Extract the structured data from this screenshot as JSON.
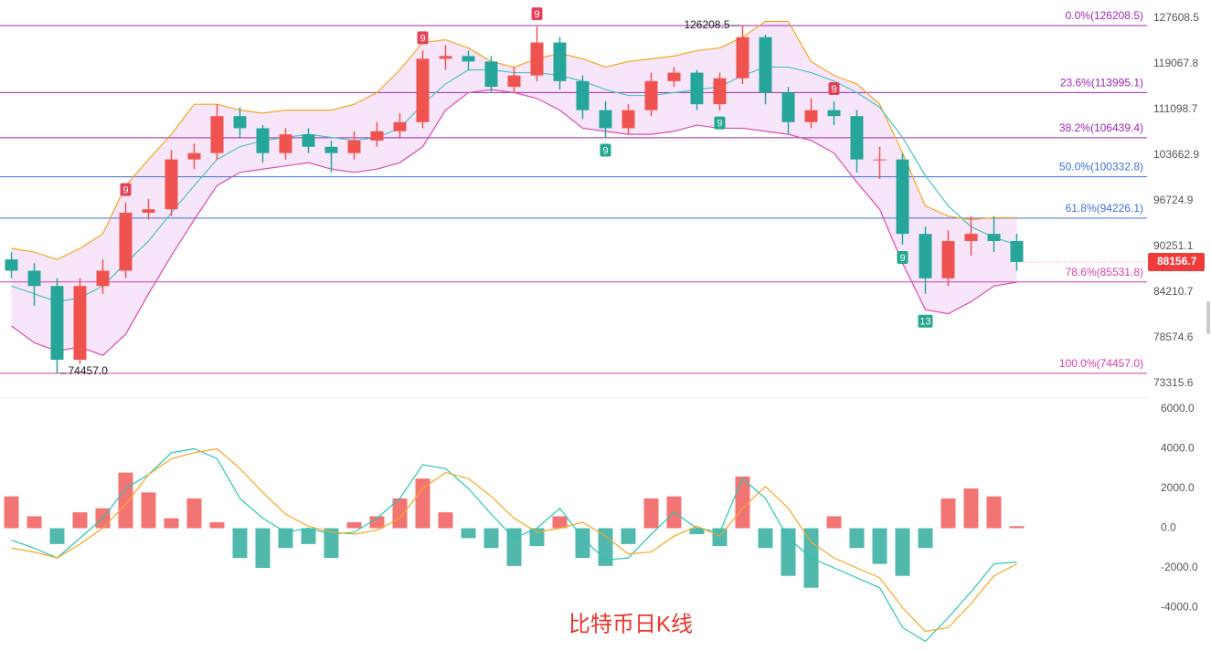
{
  "chart_data": [
    {
      "type": "candlestick",
      "ylim": [
        73315.6,
        127608.5
      ],
      "log_scale": true,
      "yticks": [
        127608.5,
        119067.8,
        111098.7,
        103662.9,
        96724.9,
        90251.1,
        84210.7,
        78574.6,
        73315.6
      ],
      "up_color": "#ef5350",
      "down_color": "#26a69a",
      "open": [
        88500,
        87000,
        85000,
        76000,
        85000,
        87000,
        95000,
        95500,
        103000,
        104000,
        110000,
        108000,
        104000,
        107000,
        105000,
        104000,
        106000,
        107500,
        109000,
        120000,
        120500,
        119500,
        115000,
        117000,
        123000,
        116000,
        111000,
        108000,
        111000,
        116000,
        117500,
        112000,
        116500,
        124000,
        114000,
        109000,
        111000,
        110000,
        103000,
        103000,
        92000,
        86000,
        91000,
        92000,
        91000
      ],
      "high": [
        89500,
        88000,
        86000,
        86000,
        88500,
        96500,
        97000,
        104500,
        105500,
        112000,
        111500,
        108500,
        108000,
        108000,
        106000,
        107500,
        109000,
        110500,
        121500,
        122500,
        121500,
        120500,
        118500,
        126000,
        124000,
        117000,
        112500,
        112000,
        117500,
        118500,
        118000,
        117500,
        126208.5,
        124500,
        115000,
        113000,
        112500,
        111000,
        105000,
        104000,
        93000,
        92500,
        94500,
        94500,
        92000
      ],
      "low": [
        86000,
        82500,
        74457,
        75500,
        84000,
        86000,
        94000,
        94500,
        101500,
        103000,
        106500,
        102500,
        103000,
        104000,
        101000,
        103000,
        105000,
        106500,
        108000,
        118000,
        118000,
        114000,
        114000,
        116000,
        114500,
        109500,
        106500,
        107000,
        110000,
        115000,
        111000,
        111000,
        115500,
        112000,
        107000,
        108000,
        108500,
        101000,
        100000,
        90500,
        84000,
        85000,
        89000,
        89500,
        87000
      ],
      "close": [
        87000,
        85000,
        76000,
        85000,
        87000,
        95000,
        95500,
        103000,
        104000,
        110000,
        108000,
        104000,
        107000,
        105000,
        104000,
        106000,
        107500,
        109000,
        120000,
        120500,
        119500,
        115000,
        117000,
        123000,
        116000,
        111000,
        108000,
        111000,
        116000,
        117500,
        112000,
        116500,
        124000,
        114000,
        109000,
        111000,
        110000,
        103000,
        103000,
        92000,
        86000,
        91000,
        92000,
        91000,
        88156.7
      ],
      "bollinger": {
        "upper_color": "#f5a623",
        "mid_color": "#4ec3c0",
        "lower_color": "#d94bb0",
        "fill": "#f3dcf7",
        "upper": [
          90000,
          89500,
          88500,
          90000,
          92000,
          99000,
          103000,
          107000,
          112000,
          112000,
          111000,
          110500,
          111000,
          111000,
          111000,
          112000,
          114000,
          118000,
          123000,
          123500,
          122000,
          119500,
          118500,
          120000,
          121000,
          120000,
          118500,
          119500,
          120000,
          120500,
          121500,
          122000,
          124000,
          127000,
          127000,
          119500,
          117000,
          115500,
          112000,
          104000,
          96000,
          94500,
          94000,
          94300,
          94300
        ],
        "mid": [
          85000,
          84000,
          83000,
          83500,
          85000,
          88000,
          91000,
          95000,
          99000,
          103000,
          105000,
          106000,
          106500,
          107000,
          106500,
          106000,
          106500,
          108000,
          112000,
          115500,
          118000,
          118000,
          117500,
          117500,
          117000,
          116000,
          114500,
          113500,
          113500,
          114000,
          114500,
          115000,
          117000,
          118500,
          118500,
          117500,
          116000,
          114000,
          111500,
          106500,
          100500,
          96000,
          93000,
          91500,
          90500
        ],
        "lower": [
          80000,
          78000,
          77000,
          77500,
          76500,
          79000,
          84000,
          89000,
          94000,
          99000,
          101000,
          101500,
          102000,
          102500,
          101500,
          101000,
          101500,
          102500,
          105000,
          111000,
          114000,
          114500,
          114000,
          113000,
          111000,
          108000,
          107500,
          107000,
          107000,
          107500,
          108500,
          108000,
          108000,
          107500,
          107000,
          106000,
          104000,
          99500,
          95500,
          88000,
          82000,
          81500,
          83000,
          85000,
          85500
        ]
      },
      "fib_levels": [
        {
          "value": 126208.5,
          "label": "0.0%(126208.5)"
        },
        {
          "value": 113995.1,
          "label": "23.6%(113995.1)"
        },
        {
          "value": 106439.4,
          "label": "38.2%(106439.4)"
        },
        {
          "value": 100332.8,
          "label": "50.0%(100332.8)"
        },
        {
          "value": 94226.1,
          "label": "61.8%(94226.1)"
        },
        {
          "value": 85531.8,
          "label": "78.6%(85531.8)"
        },
        {
          "value": 74457.0,
          "label": "100.0%(74457.0)"
        }
      ],
      "fib_colors": [
        "#9c27b0",
        "#9c27b0",
        "#9c27b0",
        "#3f6fd8",
        "#3f6fd8",
        "#d63fa8",
        "#d63fa8"
      ],
      "high_mark": 126208.5,
      "low_mark": {
        "value": 74457.0,
        "label": "74457.0"
      },
      "last_price": 88156.7,
      "last_price_color": "#ef3b3b",
      "annotations": [
        "9",
        "9",
        "9",
        "9",
        "9",
        "9",
        "9",
        "13"
      ]
    },
    {
      "type": "macd",
      "ylim": [
        -6000,
        6000
      ],
      "yticks": [
        {
          "value": 6000,
          "label": "6000.0"
        },
        {
          "value": 4000,
          "label": "4000.0"
        },
        {
          "value": 2000,
          "label": "2000.0"
        },
        {
          "value": 0,
          "label": "0.0"
        },
        {
          "value": -2000,
          "label": "-2000.0"
        },
        {
          "value": -4000,
          "label": "-4000.0"
        }
      ],
      "hist": [
        1600,
        600,
        -800,
        800,
        1000,
        2800,
        1800,
        500,
        1500,
        300,
        -1500,
        -2000,
        -1000,
        -800,
        -1500,
        300,
        600,
        1500,
        2500,
        800,
        -500,
        -1000,
        -1900,
        -900,
        600,
        -1500,
        -1900,
        -800,
        1500,
        1600,
        -300,
        -900,
        2600,
        -1000,
        -2400,
        -3000,
        600,
        -1000,
        -1800,
        -2400,
        -1000,
        1500,
        2000,
        1600,
        100
      ],
      "dif": [
        -600,
        -1000,
        -1500,
        -500,
        500,
        2000,
        2700,
        3800,
        4000,
        3500,
        1500,
        500,
        -200,
        0,
        -300,
        -200,
        500,
        1500,
        3200,
        3000,
        2000,
        700,
        -500,
        0,
        1000,
        -500,
        -1600,
        -1500,
        -300,
        800,
        0,
        -200,
        2500,
        1500,
        -500,
        -1500,
        -2000,
        -2500,
        -3000,
        -5000,
        -5700,
        -4500,
        -3200,
        -1800,
        -1700
      ],
      "dea": [
        -1000,
        -1200,
        -1500,
        -800,
        0,
        1200,
        2700,
        3500,
        3800,
        4000,
        3000,
        1800,
        700,
        100,
        -200,
        -300,
        -100,
        500,
        2000,
        2800,
        2500,
        1600,
        500,
        -200,
        0,
        300,
        -400,
        -1300,
        -1200,
        -400,
        100,
        -400,
        1000,
        2100,
        1000,
        -700,
        -1500,
        -2000,
        -2500,
        -4000,
        -5200,
        -5000,
        -3800,
        -2400,
        -1800
      ],
      "pos_color": "#ef5350",
      "neg_color": "#26a69a",
      "dif_color": "#2bc4b4",
      "dea_color": "#f5a623",
      "title": "比特币日K线"
    }
  ]
}
